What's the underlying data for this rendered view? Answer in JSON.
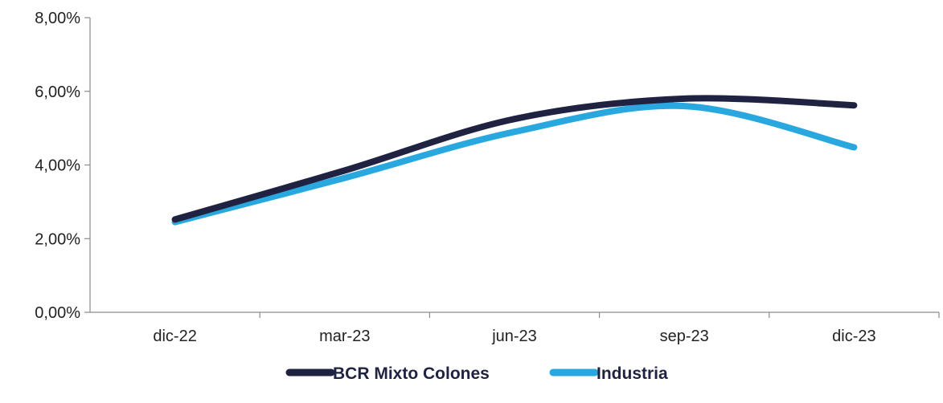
{
  "chart_data": {
    "type": "line",
    "categories": [
      "dic-22",
      "mar-23",
      "jun-23",
      "sep-23",
      "dic-23"
    ],
    "series": [
      {
        "name": "BCR Mixto Colones",
        "color": "#1f2240",
        "values": [
          2.52,
          3.85,
          5.25,
          5.8,
          5.62
        ]
      },
      {
        "name": "Industria",
        "color": "#29a8e0",
        "values": [
          2.45,
          3.65,
          4.9,
          5.6,
          4.48
        ]
      }
    ],
    "y_ticks": [
      "0,00%",
      "2,00%",
      "4,00%",
      "6,00%",
      "8,00%"
    ],
    "ylim": [
      0,
      8
    ],
    "title": "",
    "xlabel": "",
    "ylabel": "",
    "grid": false,
    "legend_position": "bottom"
  }
}
